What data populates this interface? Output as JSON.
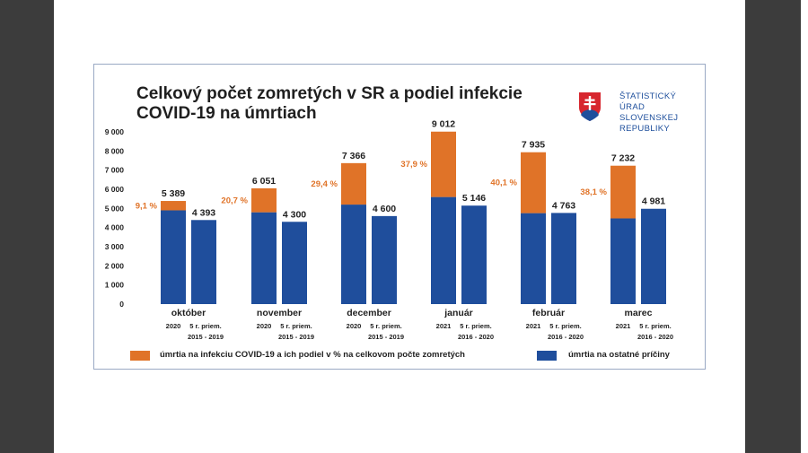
{
  "title": "Celkový počet zomretých v SR a podiel infekcie\nCOVID-19 na úmrtiach",
  "logo": {
    "text": "ŠTATISTICKÝ\nÚRAD\nSLOVENSKEJ\nREPUBLIKY"
  },
  "colors": {
    "covid": "#E07328",
    "other": "#1F4E9C",
    "axis_text": "#1f1f1f",
    "pct_text": "#E07328"
  },
  "chart_data": {
    "type": "bar",
    "stacked": true,
    "ylim": [
      0,
      9000
    ],
    "yticks": [
      "0",
      "1 000",
      "2 000",
      "3 000",
      "4 000",
      "5 000",
      "6 000",
      "7 000",
      "8 000",
      "9 000"
    ],
    "ytick_values": [
      0,
      1000,
      2000,
      3000,
      4000,
      5000,
      6000,
      7000,
      8000,
      9000
    ],
    "groups": [
      {
        "month": "október",
        "bars": [
          {
            "label": "2020",
            "total": 5389,
            "total_label": "5 389",
            "covid": 490,
            "pct": "9,1 %"
          },
          {
            "label": "5 r. priem.\n2015 - 2019",
            "total": 4393,
            "total_label": "4 393"
          }
        ]
      },
      {
        "month": "november",
        "bars": [
          {
            "label": "2020",
            "total": 6051,
            "total_label": "6 051",
            "covid": 1253,
            "pct": "20,7 %"
          },
          {
            "label": "5 r. priem.\n2015 - 2019",
            "total": 4300,
            "total_label": "4 300"
          }
        ]
      },
      {
        "month": "december",
        "bars": [
          {
            "label": "2020",
            "total": 7366,
            "total_label": "7 366",
            "covid": 2166,
            "pct": "29,4 %"
          },
          {
            "label": "5 r. priem.\n2015 - 2019",
            "total": 4600,
            "total_label": "4 600"
          }
        ]
      },
      {
        "month": "január",
        "bars": [
          {
            "label": "2021",
            "total": 9012,
            "total_label": "9 012",
            "covid": 3416,
            "pct": "37,9 %"
          },
          {
            "label": "5 r. priem.\n2016 - 2020",
            "total": 5146,
            "total_label": "5 146"
          }
        ]
      },
      {
        "month": "február",
        "bars": [
          {
            "label": "2021",
            "total": 7935,
            "total_label": "7 935",
            "covid": 3182,
            "pct": "40,1 %"
          },
          {
            "label": "5 r. priem.\n2016 - 2020",
            "total": 4763,
            "total_label": "4 763"
          }
        ]
      },
      {
        "month": "marec",
        "bars": [
          {
            "label": "2021",
            "total": 7232,
            "total_label": "7 232",
            "covid": 2755,
            "pct": "38,1 %"
          },
          {
            "label": "5 r. priem.\n2016 - 2020",
            "total": 4981,
            "total_label": "4 981"
          }
        ]
      }
    ],
    "legend": [
      {
        "key": "covid",
        "label": "úmrtia na infekciu COVID-19 a ich podiel v % na celkovom počte zomretých"
      },
      {
        "key": "other",
        "label": "úmrtia na ostatné príčiny"
      }
    ]
  }
}
